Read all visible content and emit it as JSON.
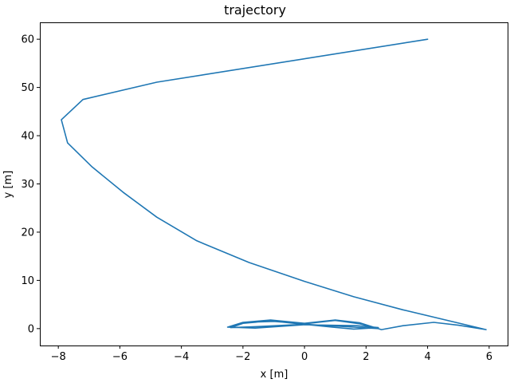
{
  "chart_data": {
    "type": "line",
    "title": "trajectory",
    "xlabel": "x [m]",
    "ylabel": "y [m]",
    "xlim": [
      -8.6,
      6.6
    ],
    "ylim": [
      -3.5,
      63.5
    ],
    "xticks": [
      -8,
      -6,
      -4,
      -2,
      0,
      2,
      4,
      6
    ],
    "yticks": [
      0,
      10,
      20,
      30,
      40,
      50,
      60
    ],
    "xtick_labels": [
      "−8",
      "−6",
      "−4",
      "−2",
      "0",
      "2",
      "4",
      "6"
    ],
    "ytick_labels": [
      "0",
      "10",
      "20",
      "30",
      "40",
      "50",
      "60"
    ],
    "grid": false,
    "series": [
      {
        "color": "#1f77b4",
        "x": [
          4.0,
          -4.8,
          -7.2,
          -7.9,
          -7.7,
          -6.9,
          -5.9,
          -4.8,
          -3.5,
          -1.8,
          0.0,
          1.6,
          3.2,
          5.9,
          5.0,
          4.2,
          3.2,
          2.5,
          1.8,
          1.0,
          0.0,
          -1.1,
          -2.0,
          -2.5,
          -1.6,
          0.0,
          1.7,
          2.4,
          1.6,
          0.9,
          0.0,
          -1.1,
          -2.0,
          -2.4,
          -1.6,
          0.0,
          1.6,
          2.4,
          1.8,
          1.0,
          0.0,
          -1.0,
          -1.9,
          -2.4
        ],
        "y": [
          60.0,
          51.1,
          47.5,
          43.3,
          38.5,
          33.5,
          28.3,
          23.1,
          18.2,
          13.7,
          9.8,
          6.6,
          3.9,
          -0.2,
          0.7,
          1.3,
          0.6,
          -0.2,
          1.2,
          1.8,
          1.1,
          1.8,
          1.3,
          0.3,
          0.1,
          0.8,
          0.6,
          0.2,
          -0.1,
          0.3,
          0.9,
          1.6,
          1.1,
          0.2,
          0.4,
          0.9,
          0.3,
          0.0,
          1.0,
          1.7,
          1.0,
          1.5,
          1.3,
          0.5
        ]
      }
    ]
  }
}
